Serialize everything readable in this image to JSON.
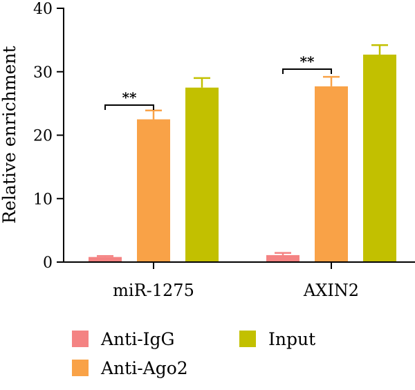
{
  "chart_data": {
    "type": "bar",
    "title": "",
    "xlabel": "",
    "ylabel": "Relative enrichment",
    "ylim": [
      0,
      40
    ],
    "yticks": [
      0,
      10,
      20,
      30,
      40
    ],
    "categories": [
      "miR-1275",
      "AXIN2"
    ],
    "series": [
      {
        "name": "Anti-IgG",
        "color": "#f48383",
        "values": [
          0.8,
          1.1
        ],
        "errors": [
          0.15,
          0.35
        ]
      },
      {
        "name": "Anti-Ago2",
        "color": "#f9a247",
        "values": [
          22.5,
          27.7
        ],
        "errors": [
          1.4,
          1.5
        ]
      },
      {
        "name": "Input",
        "color": "#c2c000",
        "values": [
          27.5,
          32.7
        ],
        "errors": [
          1.5,
          1.5
        ]
      }
    ],
    "significance": [
      {
        "category": "miR-1275",
        "label": "**",
        "from": "Anti-IgG",
        "to": "Anti-Ago2"
      },
      {
        "category": "AXIN2",
        "label": "**",
        "from": "Anti-IgG",
        "to": "Anti-Ago2"
      }
    ],
    "legend_position": "bottom",
    "grid": false
  }
}
